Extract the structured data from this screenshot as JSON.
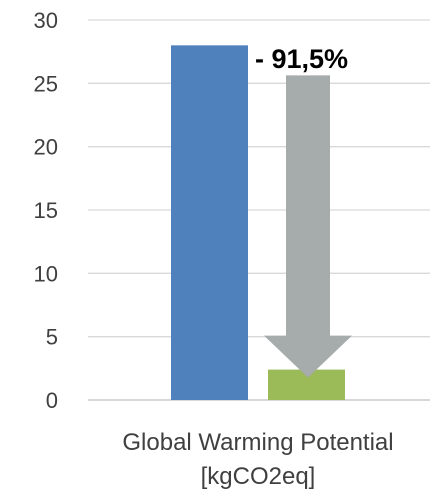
{
  "chart_data": {
    "type": "bar",
    "categories": [
      "Global Warming Potential [kgCO2eq]"
    ],
    "category_label_lines": [
      "Global Warming Potential",
      "[kgCO2eq]"
    ],
    "series": [
      {
        "values": [
          28.0
        ],
        "color": "#4F81BD"
      },
      {
        "values": [
          2.4
        ],
        "color": "#9BBB59"
      }
    ],
    "ylim": [
      0,
      30
    ],
    "yticks": [
      0,
      5,
      10,
      15,
      20,
      25,
      30
    ],
    "grid": true,
    "title": "",
    "xlabel": "",
    "ylabel": "",
    "annotation": {
      "text": "- 91,5%",
      "arrow_color": "#A6ABAB",
      "arrow_from": 28.0,
      "arrow_to": 2.4
    }
  }
}
